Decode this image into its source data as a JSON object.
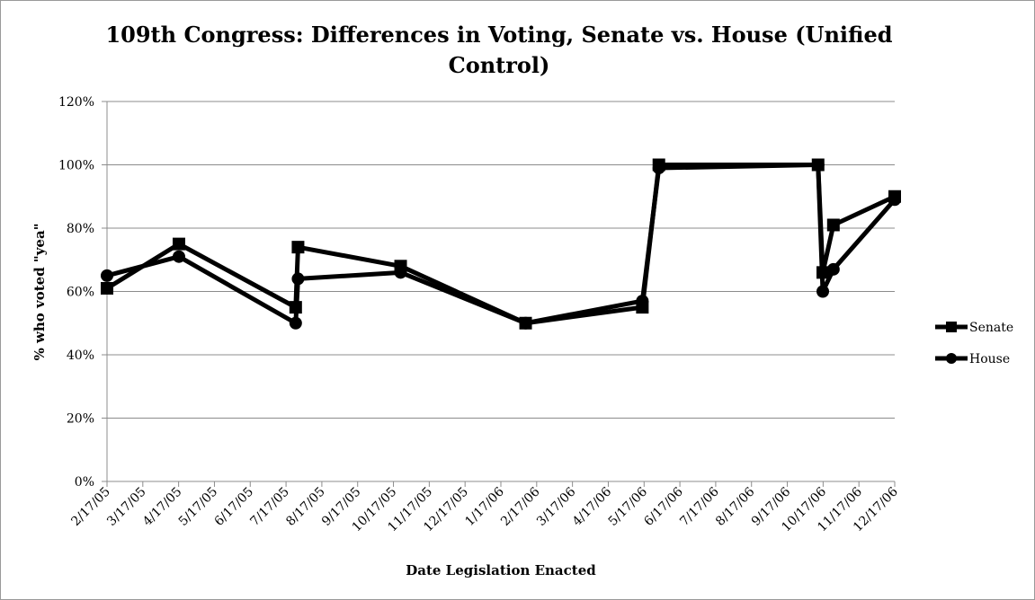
{
  "chart_data": {
    "type": "line",
    "title": "109th Congress: Differences in Voting, Senate vs. House (Unified Control)",
    "xlabel": "Date Legislation Enacted",
    "ylabel": "% who voted \"yea\"",
    "ylim": [
      0,
      120
    ],
    "y_ticks": [
      "0%",
      "20%",
      "40%",
      "60%",
      "80%",
      "100%",
      "120%"
    ],
    "y_tick_values": [
      0,
      20,
      40,
      60,
      80,
      100,
      120
    ],
    "x_ticks": [
      "2/17/05",
      "3/17/05",
      "4/17/05",
      "5/17/05",
      "6/17/05",
      "7/17/05",
      "8/17/05",
      "9/17/05",
      "10/17/05",
      "11/17/05",
      "12/17/05",
      "1/17/06",
      "2/17/06",
      "3/17/06",
      "4/17/06",
      "5/17/06",
      "6/17/06",
      "7/17/06",
      "8/17/06",
      "9/17/06",
      "10/17/06",
      "11/17/06",
      "12/17/06"
    ],
    "xlim": [
      "2005-02-17",
      "2006-12-17"
    ],
    "grid": "horizontal",
    "legend_position": "right",
    "series": [
      {
        "name": "Senate",
        "marker": "square",
        "color": "#000000",
        "points": [
          {
            "x": "2005-02-17",
            "y": 61
          },
          {
            "x": "2005-04-19",
            "y": 75
          },
          {
            "x": "2005-07-27",
            "y": 55
          },
          {
            "x": "2005-07-29",
            "y": 74
          },
          {
            "x": "2005-10-24",
            "y": 68
          },
          {
            "x": "2006-02-07",
            "y": 50
          },
          {
            "x": "2006-05-17",
            "y": 55
          },
          {
            "x": "2006-05-31",
            "y": 100
          },
          {
            "x": "2006-10-13",
            "y": 100
          },
          {
            "x": "2006-10-17",
            "y": 66
          },
          {
            "x": "2006-10-26",
            "y": 81
          },
          {
            "x": "2006-12-17",
            "y": 90
          }
        ]
      },
      {
        "name": "House",
        "marker": "circle",
        "color": "#000000",
        "points": [
          {
            "x": "2005-02-17",
            "y": 65
          },
          {
            "x": "2005-04-19",
            "y": 71
          },
          {
            "x": "2005-07-27",
            "y": 50
          },
          {
            "x": "2005-07-29",
            "y": 64
          },
          {
            "x": "2005-10-24",
            "y": 66
          },
          {
            "x": "2006-02-07",
            "y": 50
          },
          {
            "x": "2006-05-17",
            "y": 57
          },
          {
            "x": "2006-05-31",
            "y": 99
          },
          {
            "x": "2006-10-13",
            "y": 100
          },
          {
            "x": "2006-10-17",
            "y": 60
          },
          {
            "x": "2006-10-26",
            "y": 67
          },
          {
            "x": "2006-12-17",
            "y": 89
          }
        ]
      }
    ]
  }
}
